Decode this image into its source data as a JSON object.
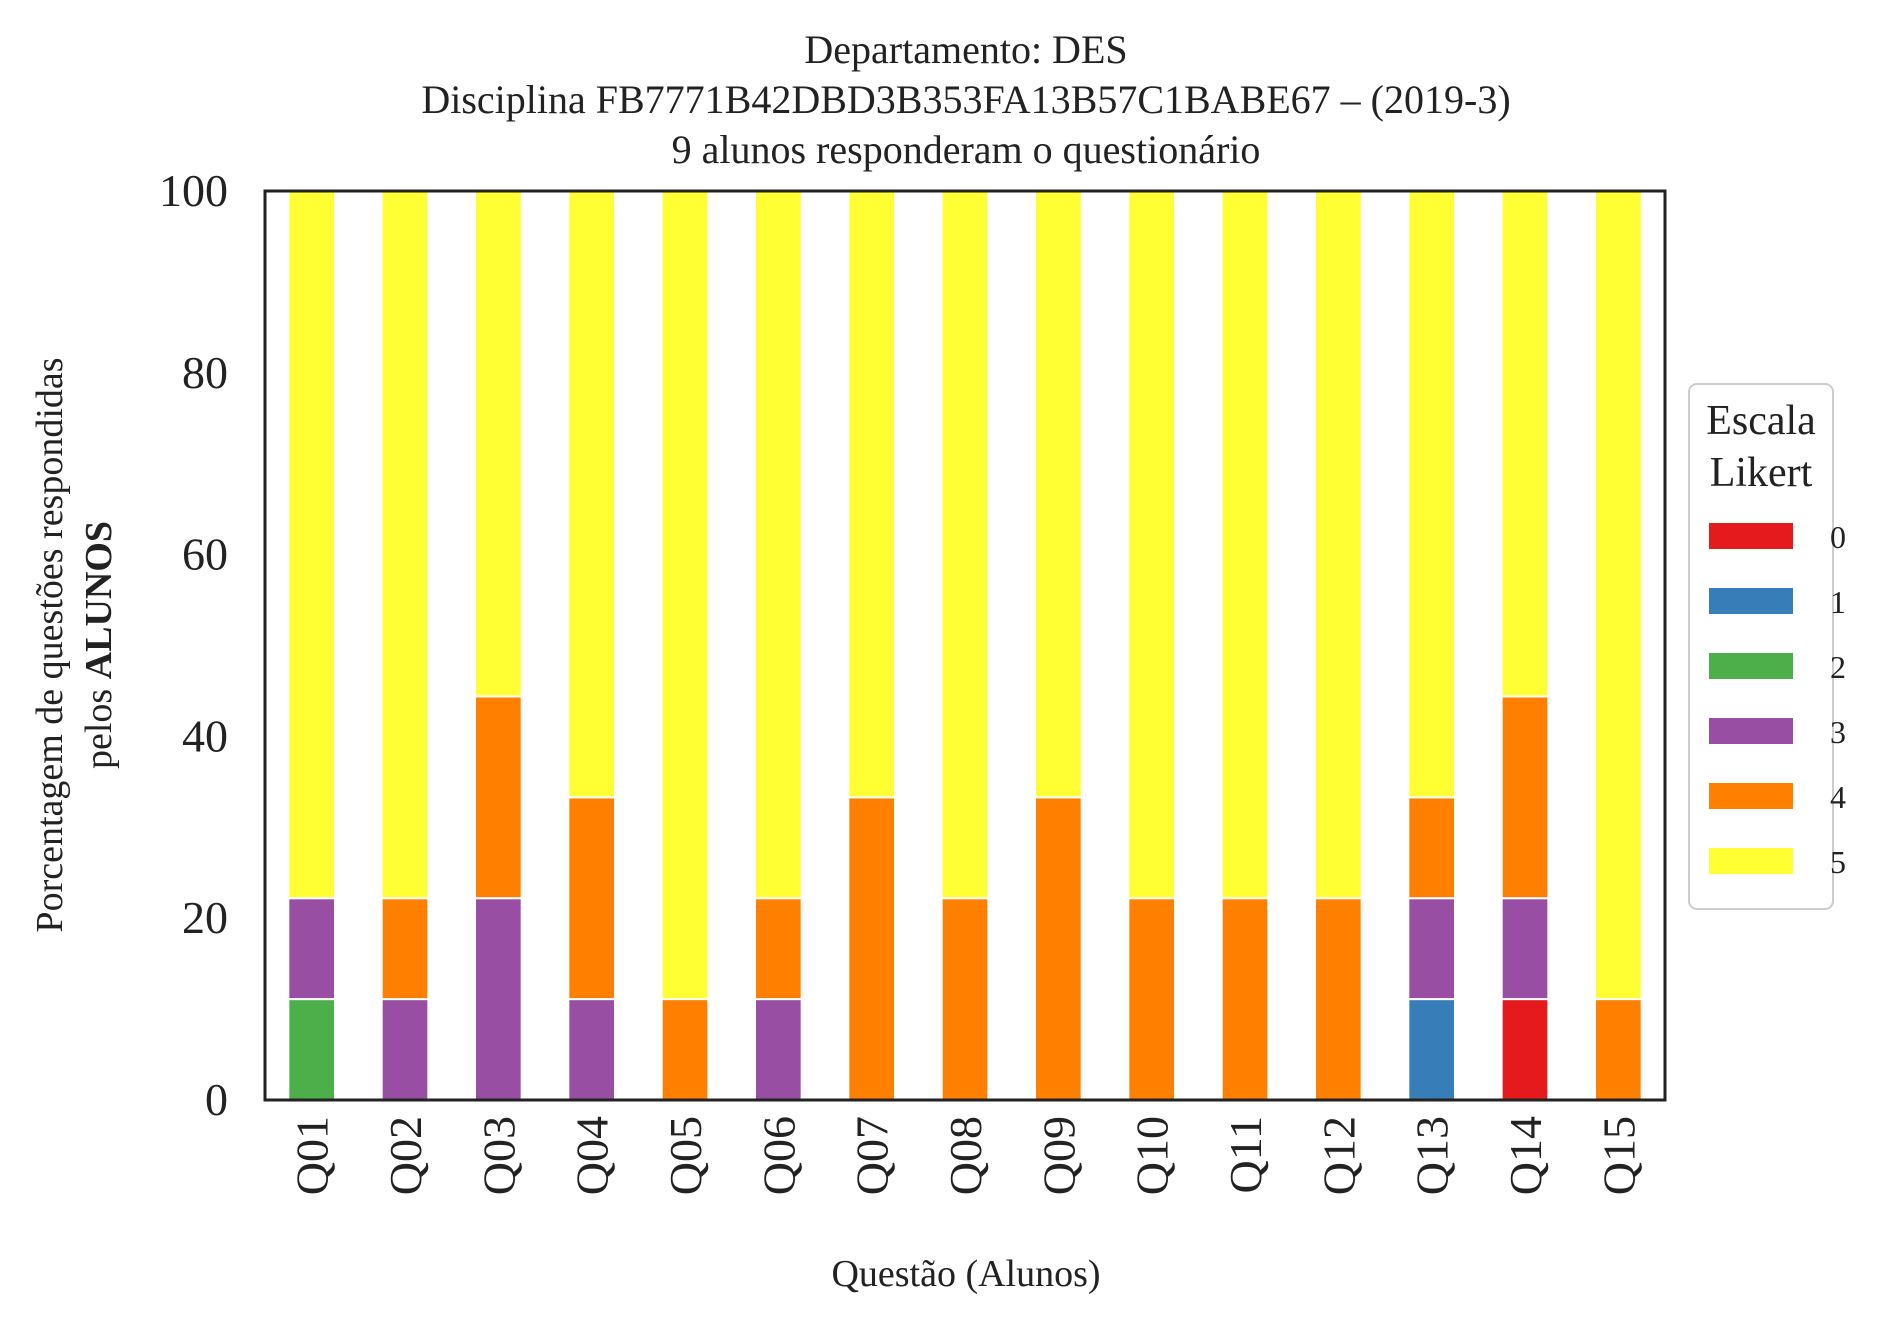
{
  "chart_data": {
    "type": "bar",
    "stacked": true,
    "title_lines": [
      "Departamento: DES",
      "Disciplina FB7771B42DBD3B353FA13B57C1BABE67 – (2019-3)",
      "9 alunos responderam o questionário"
    ],
    "xlabel": "Questão (Alunos)",
    "ylabel_line1": "Porcentagem de questões respondidas",
    "ylabel_line2_prefix": "pelos ",
    "ylabel_line2_bold": "ALUNOS",
    "ylim": [
      0,
      100
    ],
    "yticks": [
      0,
      20,
      40,
      60,
      80,
      100
    ],
    "categories": [
      "Q01",
      "Q02",
      "Q03",
      "Q04",
      "Q05",
      "Q06",
      "Q07",
      "Q08",
      "Q09",
      "Q10",
      "Q11",
      "Q12",
      "Q13",
      "Q14",
      "Q15"
    ],
    "legend": {
      "title_line1": "Escala",
      "title_line2": "Likert",
      "placement": "center-right, outside plot"
    },
    "grid": false,
    "series": [
      {
        "name": "0",
        "color": "#e41a1c",
        "values": [
          0,
          0,
          0,
          0,
          0,
          0,
          0,
          0,
          0,
          0,
          0,
          0,
          0,
          11.1,
          0
        ]
      },
      {
        "name": "1",
        "color": "#377eb8",
        "values": [
          0,
          0,
          0,
          0,
          0,
          0,
          0,
          0,
          0,
          0,
          0,
          0,
          11.1,
          0,
          0
        ]
      },
      {
        "name": "2",
        "color": "#4daf4a",
        "values": [
          11.1,
          0,
          0,
          0,
          0,
          0,
          0,
          0,
          0,
          0,
          0,
          0,
          0,
          0,
          0
        ]
      },
      {
        "name": "3",
        "color": "#984ea3",
        "values": [
          11.1,
          11.1,
          22.2,
          11.1,
          0,
          11.1,
          0,
          0,
          0,
          0,
          0,
          0,
          11.1,
          11.1,
          0
        ]
      },
      {
        "name": "4",
        "color": "#ff7f00",
        "values": [
          0,
          11.1,
          22.2,
          22.2,
          11.1,
          11.1,
          33.3,
          22.2,
          33.3,
          22.2,
          22.2,
          22.2,
          11.1,
          22.2,
          11.1
        ]
      },
      {
        "name": "5",
        "color": "#ffff33",
        "values": [
          77.8,
          77.8,
          55.6,
          66.7,
          88.9,
          77.8,
          66.7,
          77.8,
          66.7,
          77.8,
          77.8,
          77.8,
          66.7,
          55.6,
          88.9
        ]
      }
    ]
  }
}
